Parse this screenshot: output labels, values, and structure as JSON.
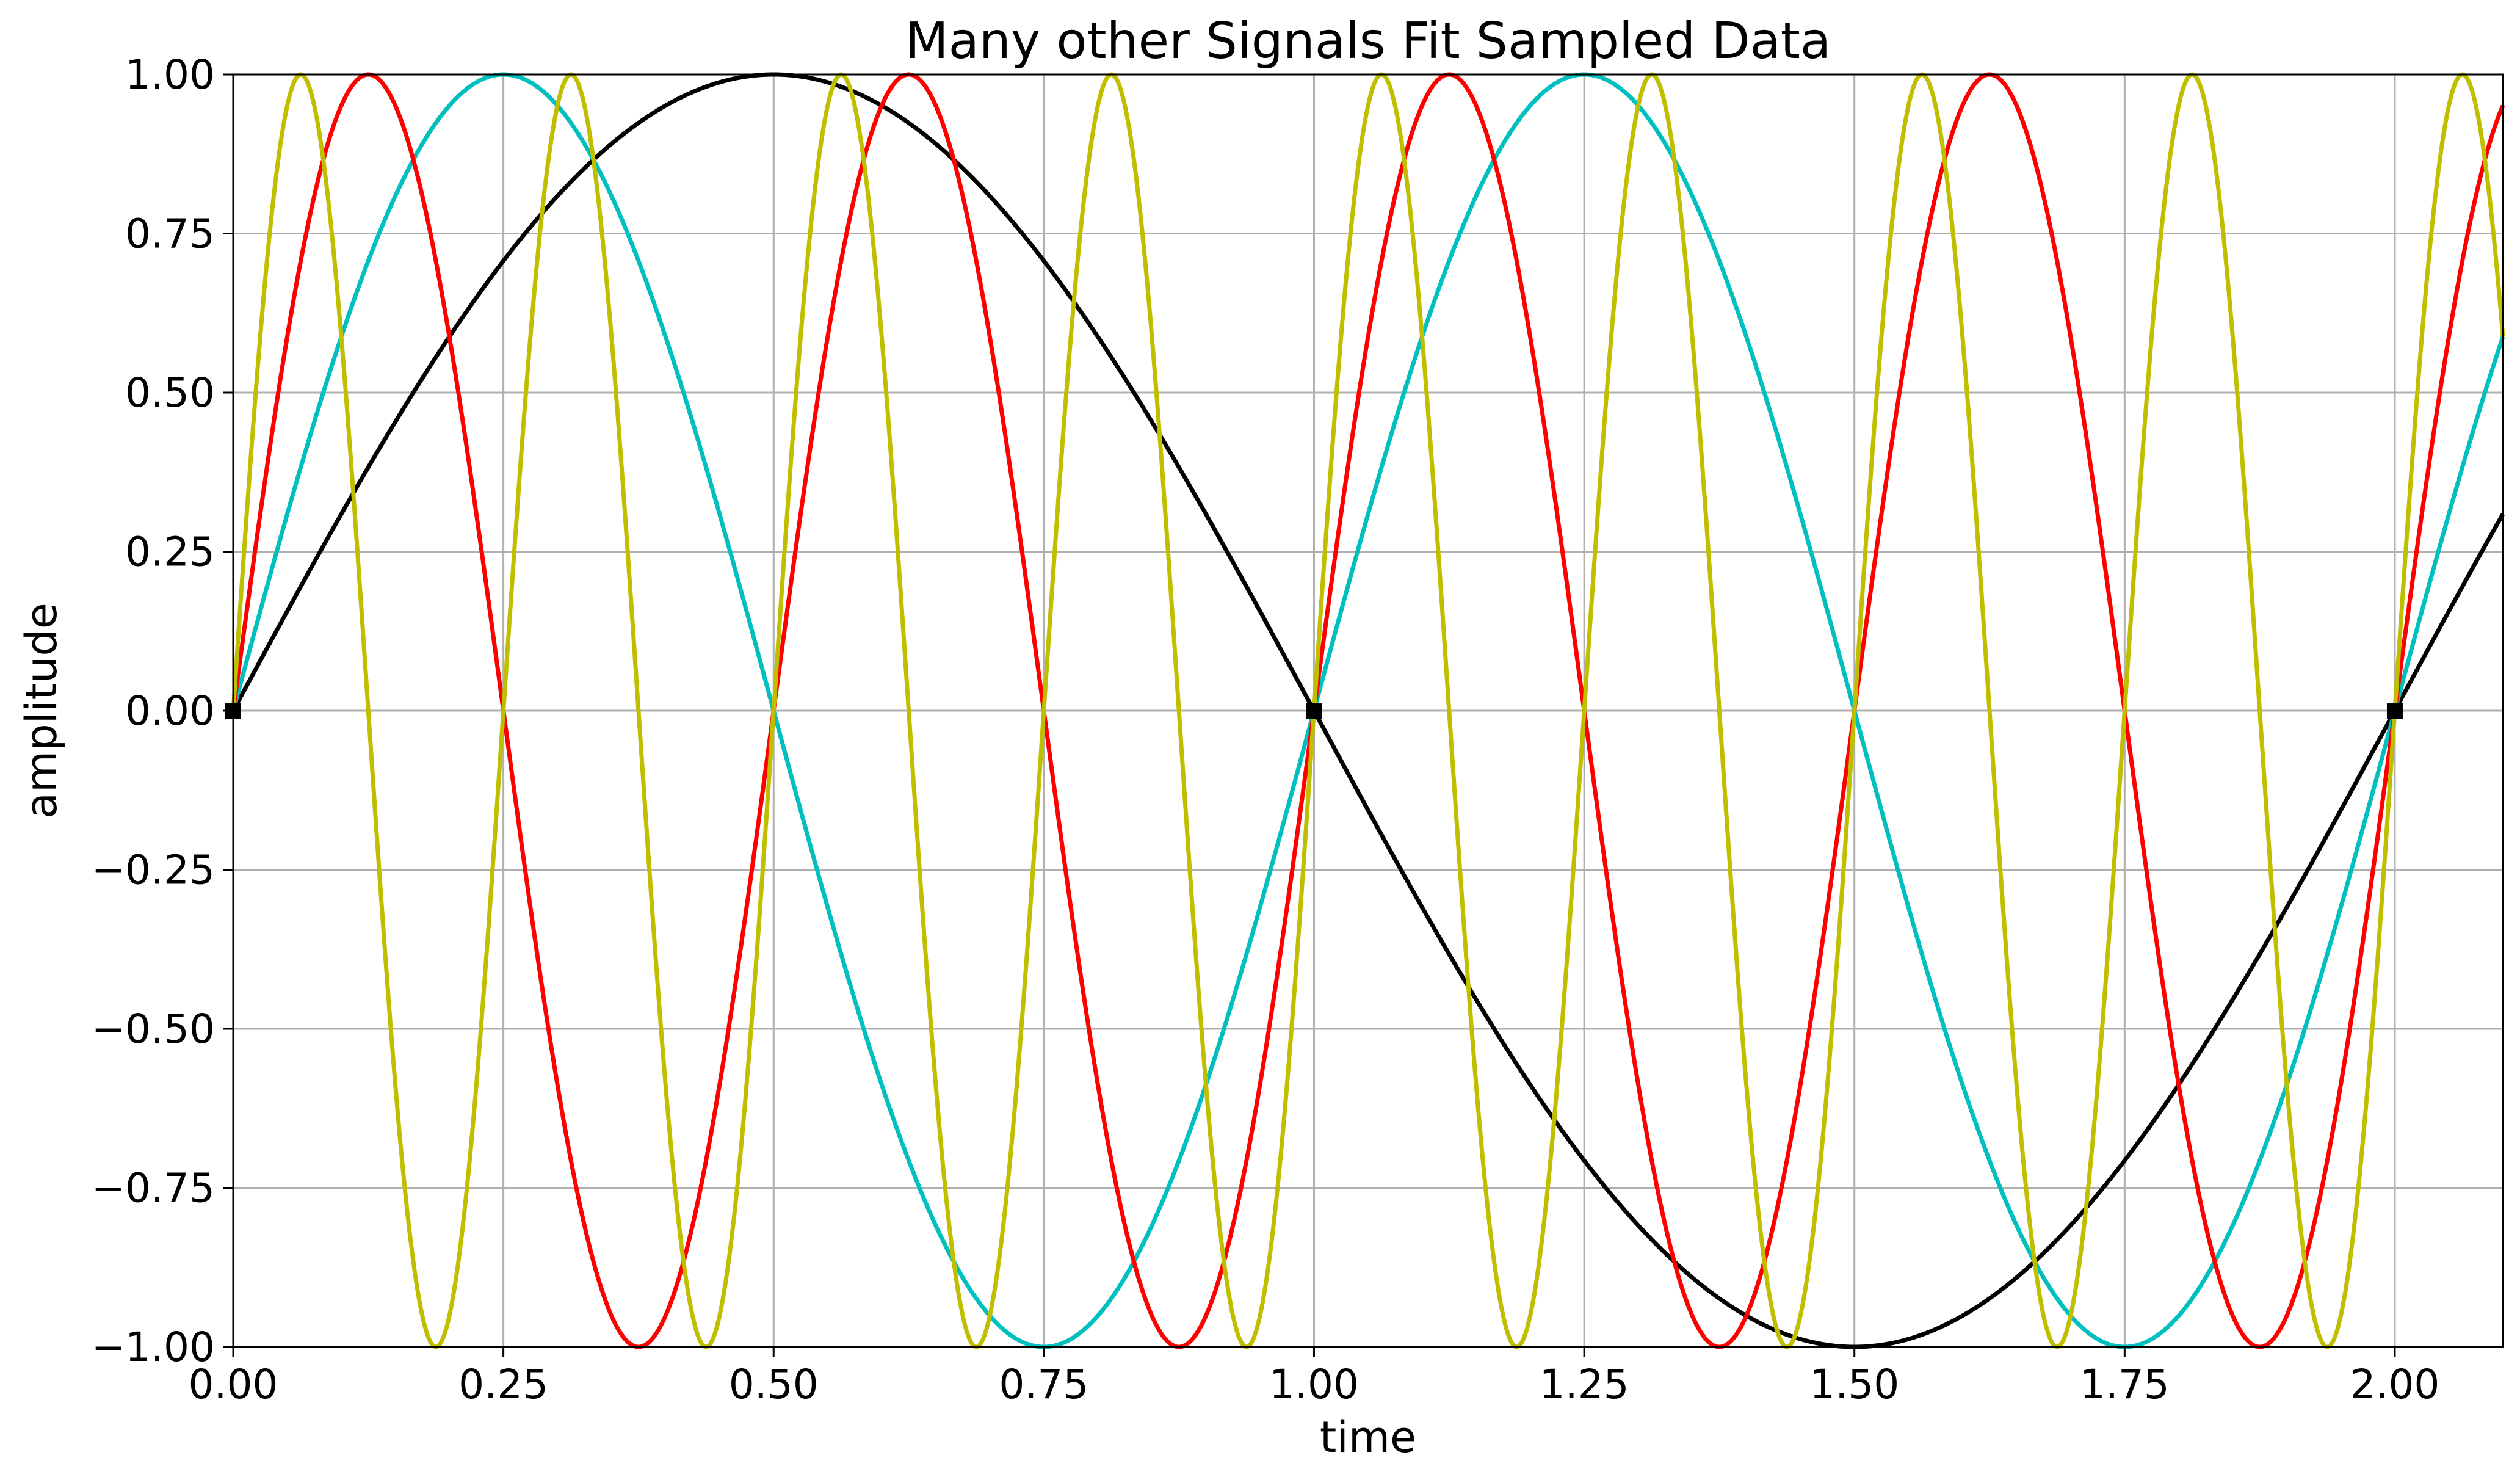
{
  "chart_data": {
    "type": "line",
    "title": "Many other Signals Fit Sampled Data",
    "xlabel": "time",
    "ylabel": "amplitude",
    "xlim": [
      0,
      2.1
    ],
    "ylim": [
      -1,
      1
    ],
    "grid": true,
    "x_ticks": [
      0,
      0.25,
      0.5,
      0.75,
      1.0,
      1.25,
      1.5,
      1.75,
      2.0
    ],
    "x_tick_labels": [
      "0.00",
      "0.25",
      "0.50",
      "0.75",
      "1.00",
      "1.25",
      "1.50",
      "1.75",
      "2.00"
    ],
    "y_ticks": [
      -1,
      -0.75,
      -0.5,
      -0.25,
      0,
      0.25,
      0.5,
      0.75,
      1
    ],
    "y_tick_labels": [
      "−1.00",
      "−0.75",
      "−0.50",
      "−0.25",
      "0.00",
      "0.25",
      "0.50",
      "0.75",
      "1.00"
    ],
    "series": [
      {
        "function": "sine",
        "frequency": 0.5,
        "color": "#000000"
      },
      {
        "function": "sine",
        "frequency": 1.0,
        "color": "#00bfbf"
      },
      {
        "function": "sine",
        "frequency": 2.0,
        "color": "#ff0000"
      },
      {
        "function": "sine",
        "frequency": 4.0,
        "color": "#bfbf00"
      }
    ],
    "samples": {
      "x": [
        0,
        1,
        2
      ],
      "y": [
        0,
        0,
        0
      ],
      "marker": "square",
      "color": "#000000"
    }
  }
}
